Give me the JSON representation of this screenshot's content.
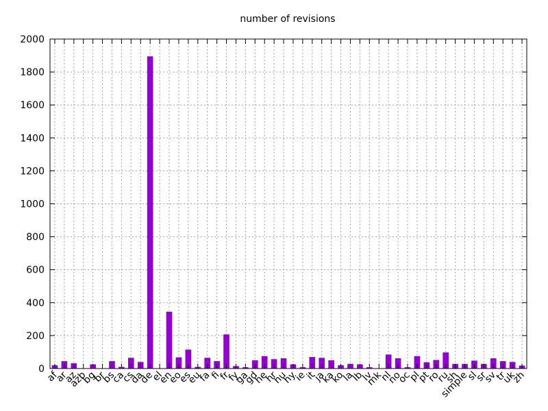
{
  "chart_data": {
    "type": "bar",
    "title": "number of revisions",
    "xlabel": "",
    "ylabel": "",
    "ylim": [
      0,
      2000
    ],
    "yticks": [
      0,
      200,
      400,
      600,
      800,
      1000,
      1200,
      1400,
      1600,
      1800,
      2000
    ],
    "grid": true,
    "legend": "none",
    "bar_color": "#9400D3",
    "categories": [
      "af",
      "ar",
      "az",
      "azb",
      "bg",
      "br",
      "bs",
      "ca",
      "cs",
      "da",
      "de",
      "el",
      "en",
      "eo",
      "es",
      "eu",
      "fa",
      "fi",
      "fr",
      "fy",
      "ga",
      "gd",
      "he",
      "hr",
      "hu",
      "hy",
      "ie",
      "it",
      "ja",
      "ka",
      "ko",
      "la",
      "lb",
      "lv",
      "mk",
      "nl",
      "no",
      "oc",
      "pl",
      "pt",
      "ro",
      "ru",
      "sh",
      "simple",
      "sl",
      "sr",
      "sv",
      "tr",
      "uk",
      "zh"
    ],
    "values": [
      20,
      45,
      32,
      0,
      25,
      0,
      45,
      10,
      65,
      40,
      1895,
      0,
      345,
      68,
      115,
      10,
      65,
      45,
      207,
      15,
      8,
      50,
      75,
      57,
      62,
      25,
      8,
      70,
      65,
      50,
      20,
      28,
      25,
      8,
      0,
      85,
      62,
      8,
      75,
      38,
      52,
      98,
      28,
      28,
      48,
      28,
      62,
      45,
      40,
      18
    ]
  }
}
